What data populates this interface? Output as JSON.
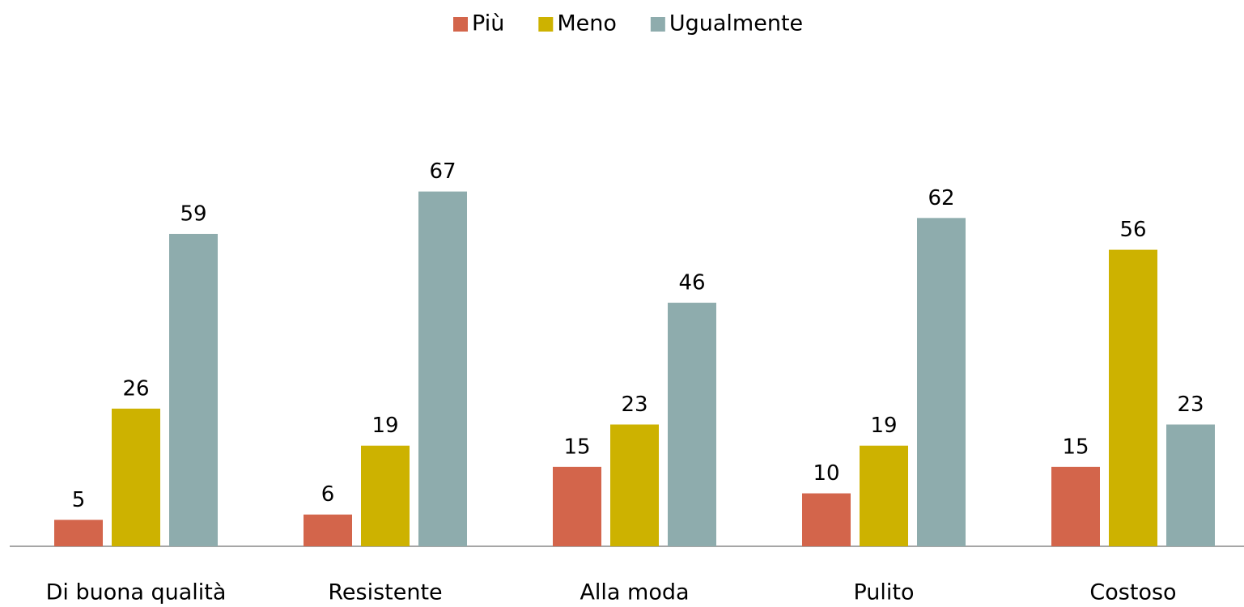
{
  "chart_data": {
    "type": "bar",
    "categories": [
      "Di buona qualità",
      "Resistente",
      "Alla moda",
      "Pulito",
      "Costoso"
    ],
    "series": [
      {
        "name": "Più",
        "color": "#d3654b",
        "values": [
          5,
          6,
          15,
          10,
          15
        ]
      },
      {
        "name": "Meno",
        "color": "#cdb200",
        "values": [
          26,
          19,
          23,
          19,
          56
        ]
      },
      {
        "name": "Ugualmente",
        "color": "#8eacad",
        "values": [
          59,
          67,
          46,
          62,
          23
        ]
      }
    ],
    "ylim": [
      0,
      70
    ],
    "legend": "top"
  }
}
